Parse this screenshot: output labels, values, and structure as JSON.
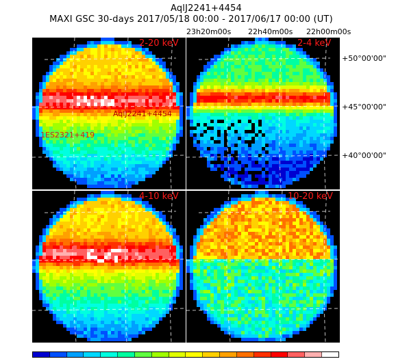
{
  "title_line1": "AqlJ2241+4454",
  "title_line2": "MAXI GSC 30-days 2017/05/18 00:00 - 2017/06/17 00:00 (UT)",
  "ra_labels": [
    "23h20m00s",
    "22h40m00s",
    "22h00m00s"
  ],
  "dec_labels": [
    "+50°00'00\"",
    "+45°00'00\"",
    "+40°00'00\""
  ],
  "panels": [
    {
      "band": "2-20 keV",
      "style": "bright"
    },
    {
      "band": "2-4 keV",
      "style": "medium"
    },
    {
      "band": "4-10 keV",
      "style": "bright"
    },
    {
      "band": "10-20 keV",
      "style": "noisy"
    }
  ],
  "sources": {
    "target": "AqlJ2241+4454",
    "other": "1ES2321+419"
  },
  "colors": {
    "label_red": "#ff1a1a",
    "colorbar": [
      "#0000d0",
      "#0050ff",
      "#00a0ff",
      "#00d8ff",
      "#00ffe0",
      "#00ffa0",
      "#60ff40",
      "#a0ff00",
      "#e0ff00",
      "#ffff00",
      "#ffd000",
      "#ffa000",
      "#ff7000",
      "#ff3000",
      "#ff0000",
      "#ff6060",
      "#ffb0b0",
      "#ffffff"
    ]
  }
}
